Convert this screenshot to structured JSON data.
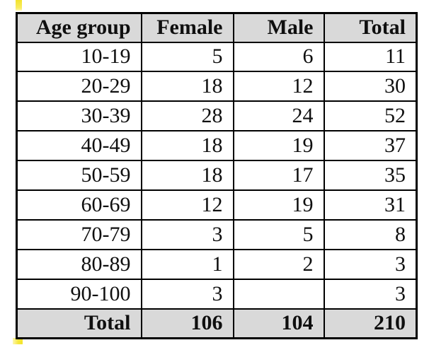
{
  "colors": {
    "header_row_background": "#d9d9d9",
    "total_row_background": "#d9d9d9",
    "table_border": "#000000",
    "highlight_marker": "#f3e32c",
    "page_background": "#ffffff"
  },
  "table": {
    "headers": [
      "Age group",
      "Female",
      "Male",
      "Total"
    ],
    "rows": [
      {
        "age_group": "10-19",
        "female": "5",
        "male": "6",
        "total": "11"
      },
      {
        "age_group": "20-29",
        "female": "18",
        "male": "12",
        "total": "30"
      },
      {
        "age_group": "30-39",
        "female": "28",
        "male": "24",
        "total": "52"
      },
      {
        "age_group": "40-49",
        "female": "18",
        "male": "19",
        "total": "37"
      },
      {
        "age_group": "50-59",
        "female": "18",
        "male": "17",
        "total": "35"
      },
      {
        "age_group": "60-69",
        "female": "12",
        "male": "19",
        "total": "31"
      },
      {
        "age_group": "70-79",
        "female": "3",
        "male": "5",
        "total": "8"
      },
      {
        "age_group": "80-89",
        "female": "1",
        "male": "2",
        "total": "3"
      },
      {
        "age_group": "90-100",
        "female": "3",
        "male": "",
        "total": "3"
      }
    ],
    "total_row": {
      "label": "Total",
      "female": "106",
      "male": "104",
      "total": "210"
    }
  }
}
